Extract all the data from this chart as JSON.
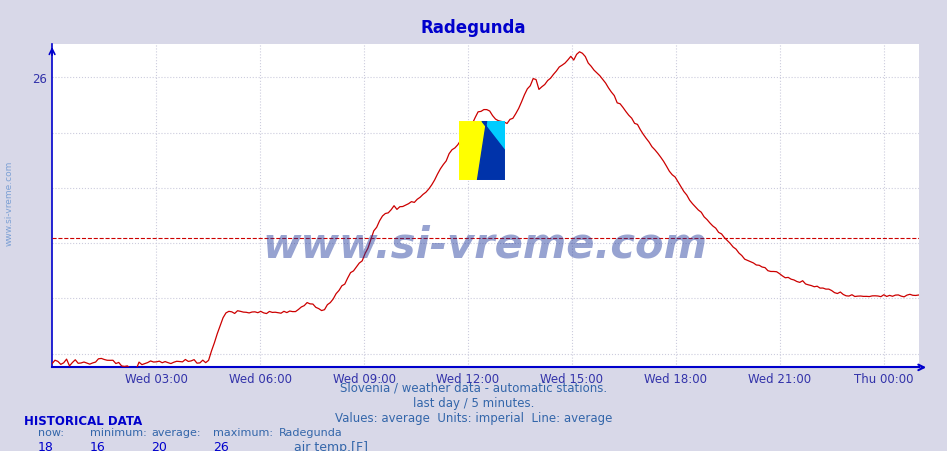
{
  "title": "Radegunda",
  "title_color": "#0000cc",
  "bg_color": "#d8d8e8",
  "plot_bg_color": "#ffffff",
  "line_color": "#cc0000",
  "average_line_value": 20.2,
  "average_line_color": "#cc0000",
  "y_min": 15.5,
  "y_max": 27.2,
  "y_tick_val": 26,
  "x_labels": [
    "Wed 03:00",
    "Wed 06:00",
    "Wed 09:00",
    "Wed 12:00",
    "Wed 15:00",
    "Wed 18:00",
    "Wed 21:00",
    "Thu 00:00"
  ],
  "xlabel_color": "#3333aa",
  "ylabel_color": "#3333aa",
  "grid_color": "#ccccdd",
  "axis_color": "#0000cc",
  "watermark_text": "www.si-vreme.com",
  "watermark_color": "#1a3399",
  "watermark_alpha": 0.45,
  "side_text": "www.si-vreme.com",
  "side_text_color": "#5588cc",
  "footer_lines": [
    "Slovenia / weather data - automatic stations.",
    "last day / 5 minutes.",
    "Values: average  Units: imperial  Line: average"
  ],
  "footer_color": "#3366aa",
  "hist_label": "HISTORICAL DATA",
  "hist_color": "#0000cc",
  "stats_labels": [
    "now:",
    "minimum:",
    "average:",
    "maximum:",
    "Radegunda"
  ],
  "stats_values": [
    "18",
    "16",
    "20",
    "26",
    "air temp.[F]"
  ],
  "stats_color": "#3366aa",
  "stats_value_color": "#0000cc",
  "logo_yellow": "#ffff00",
  "logo_cyan": "#00ccff",
  "logo_darkblue": "#0033aa"
}
